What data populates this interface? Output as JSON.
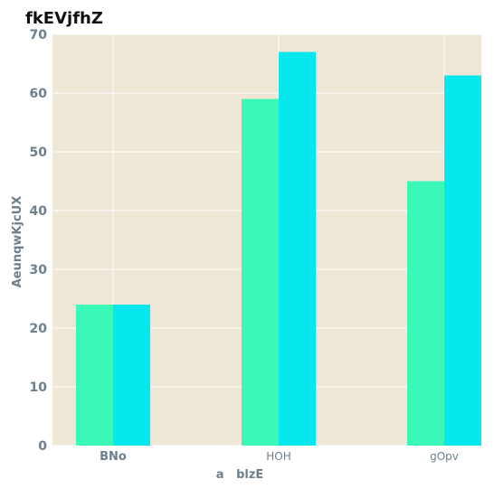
{
  "chart_data": {
    "type": "bar",
    "title": "fkEVjfhZ",
    "xlabel": "a   blzE",
    "ylabel": "AeunqwKjcUX",
    "categories": [
      "BNo",
      "HOH",
      "gOpv"
    ],
    "series": [
      {
        "values": [
          24,
          59,
          45
        ]
      },
      {
        "values": [
          24,
          67,
          63
        ]
      }
    ],
    "ylim": [
      0,
      70
    ],
    "yticks": [
      0,
      10,
      20,
      30,
      40,
      50,
      60,
      70
    ],
    "grid": true,
    "legend": "none"
  },
  "colors": {
    "plot_background": "#EEE7D5",
    "grid": "#FFFFFF",
    "series": [
      "#3AF9B8",
      "#07E8EE"
    ],
    "tick_label": "#6B7F8C",
    "axis_label": "#6B7F8C",
    "title": "#111111"
  }
}
